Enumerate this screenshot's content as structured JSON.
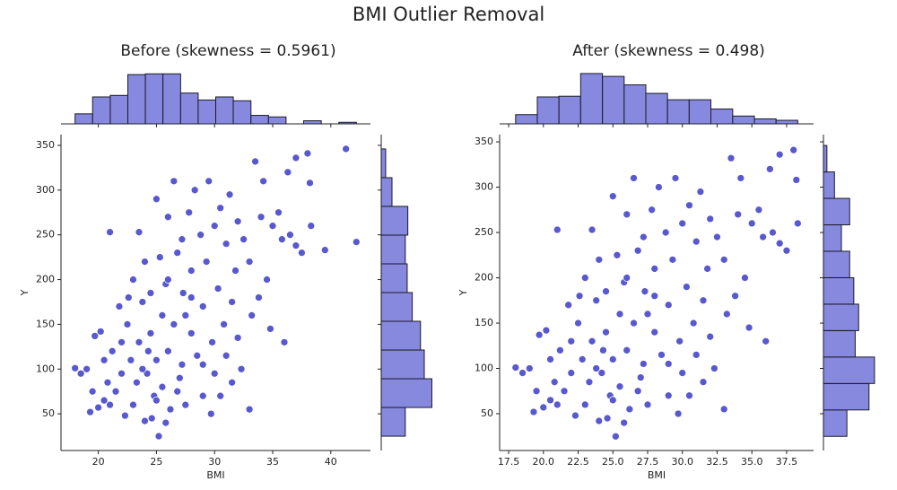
{
  "title": "BMI Outlier Removal",
  "chart_data": [
    {
      "type": "scatter",
      "title": "Before (skewness = 0.5961)",
      "x_label": "BMI",
      "y_label": "Y",
      "color": "#5858cf",
      "x": [
        18.0,
        18.5,
        19.0,
        19.3,
        19.7,
        20.0,
        20.2,
        20.5,
        20.8,
        21.0,
        21.2,
        21.5,
        21.8,
        22.0,
        22.3,
        22.5,
        22.8,
        23.0,
        23.0,
        23.3,
        23.5,
        23.5,
        23.8,
        24.0,
        24.2,
        24.5,
        24.5,
        24.8,
        25.0,
        25.0,
        25.2,
        25.3,
        25.5,
        25.5,
        25.8,
        26.0,
        26.0,
        26.2,
        26.5,
        26.5,
        26.8,
        27.0,
        27.2,
        27.3,
        27.5,
        27.8,
        28.0,
        28.0,
        28.3,
        28.5,
        28.8,
        29.0,
        29.0,
        29.3,
        29.5,
        29.8,
        30.0,
        30.0,
        30.3,
        30.5,
        30.8,
        31.0,
        31.0,
        31.3,
        31.5,
        31.8,
        32.0,
        32.0,
        32.3,
        32.5,
        33.0,
        33.0,
        33.2,
        33.5,
        33.8,
        34.0,
        34.2,
        34.5,
        34.8,
        35.0,
        35.5,
        35.8,
        36.0,
        36.3,
        36.5,
        37.0,
        37.0,
        37.5,
        38.0,
        38.2,
        38.3,
        39.5,
        41.3,
        42.2,
        21.0,
        22.0,
        23.8,
        24.3,
        25.0,
        26.8,
        27.5,
        29.0,
        30.5,
        31.5,
        20.5,
        22.6,
        24.0,
        26.0,
        28.0,
        19.5,
        24.6,
        25.8,
        27.2,
        29.7
      ],
      "y": [
        101,
        95,
        100,
        52,
        137,
        57,
        142,
        65,
        85,
        253,
        120,
        75,
        170,
        95,
        48,
        150,
        110,
        200,
        60,
        85,
        253,
        130,
        175,
        42,
        95,
        185,
        140,
        70,
        290,
        110,
        25,
        225,
        160,
        80,
        195,
        270,
        120,
        55,
        310,
        150,
        230,
        90,
        245,
        185,
        60,
        275,
        140,
        210,
        300,
        115,
        250,
        170,
        70,
        220,
        310,
        130,
        260,
        95,
        190,
        280,
        150,
        240,
        115,
        295,
        175,
        210,
        265,
        135,
        100,
        245,
        55,
        220,
        160,
        332,
        180,
        270,
        310,
        200,
        145,
        260,
        275,
        245,
        130,
        320,
        250,
        336,
        238,
        230,
        341,
        308,
        260,
        233,
        346,
        242,
        60,
        130,
        100,
        120,
        65,
        75,
        160,
        105,
        70,
        85,
        110,
        180,
        220,
        200,
        180,
        75,
        45,
        40,
        105,
        50
      ],
      "xlim": [
        16.79,
        43.41
      ],
      "ylim": [
        9,
        362
      ],
      "xticks": [
        20,
        25,
        30,
        35,
        40
      ],
      "yticks": [
        50,
        100,
        150,
        200,
        250,
        300,
        350
      ],
      "hist_color": "#8789de",
      "x_hist": {
        "bins": [
          18.0,
          19.51,
          21.03,
          22.54,
          24.05,
          25.56,
          27.08,
          28.59,
          30.1,
          31.61,
          33.13,
          34.64,
          36.15,
          37.66,
          39.18,
          40.69,
          42.2
        ],
        "counts": [
          13,
          35,
          37,
          64,
          65,
          65,
          40,
          31,
          35,
          30,
          11,
          9,
          0,
          4,
          0,
          2
        ],
        "ylim": [
          0,
          70
        ]
      },
      "y_hist": {
        "bins": [
          25,
          57.1,
          89.2,
          121.3,
          153.4,
          185.5,
          217.6,
          249.7,
          281.8,
          313.9,
          346
        ],
        "counts": [
          38,
          80,
          68,
          62,
          49,
          41,
          38,
          42,
          17,
          7
        ],
        "xlim": [
          0,
          85
        ]
      }
    },
    {
      "type": "scatter",
      "title": "After (skewness = 0.498)",
      "x_label": "BMI",
      "y_label": "Y",
      "color": "#5858cf",
      "x": [
        18.0,
        18.5,
        19.0,
        19.3,
        19.7,
        20.0,
        20.2,
        20.5,
        20.8,
        21.0,
        21.2,
        21.5,
        21.8,
        22.0,
        22.3,
        22.5,
        22.8,
        23.0,
        23.0,
        23.3,
        23.5,
        23.5,
        23.8,
        24.0,
        24.2,
        24.5,
        24.5,
        24.8,
        25.0,
        25.0,
        25.2,
        25.3,
        25.5,
        25.5,
        25.8,
        26.0,
        26.0,
        26.2,
        26.5,
        26.5,
        26.8,
        27.0,
        27.2,
        27.3,
        27.5,
        27.8,
        28.0,
        28.0,
        28.3,
        28.5,
        28.8,
        29.0,
        29.0,
        29.3,
        29.5,
        29.8,
        30.0,
        30.0,
        30.3,
        30.5,
        30.8,
        31.0,
        31.0,
        31.3,
        31.5,
        31.8,
        32.0,
        32.0,
        32.3,
        32.5,
        33.0,
        33.0,
        33.2,
        33.5,
        33.8,
        34.0,
        34.2,
        34.5,
        34.8,
        35.0,
        35.5,
        35.8,
        36.0,
        36.3,
        36.5,
        37.0,
        37.0,
        37.5,
        38.0,
        38.2,
        38.3,
        21.0,
        22.0,
        23.8,
        24.3,
        25.0,
        26.8,
        27.5,
        29.0,
        30.5,
        31.5,
        20.5,
        22.6,
        24.0,
        26.0,
        28.0,
        19.5,
        24.6,
        25.8,
        27.2,
        29.7
      ],
      "y": [
        101,
        95,
        100,
        52,
        137,
        57,
        142,
        65,
        85,
        253,
        120,
        75,
        170,
        95,
        48,
        150,
        110,
        200,
        60,
        85,
        253,
        130,
        175,
        42,
        95,
        185,
        140,
        70,
        290,
        110,
        25,
        225,
        160,
        80,
        195,
        270,
        120,
        55,
        310,
        150,
        230,
        90,
        245,
        185,
        60,
        275,
        140,
        210,
        300,
        115,
        250,
        170,
        70,
        220,
        310,
        130,
        260,
        95,
        190,
        280,
        150,
        240,
        115,
        295,
        175,
        210,
        265,
        135,
        100,
        245,
        55,
        220,
        160,
        332,
        180,
        270,
        310,
        200,
        145,
        260,
        275,
        245,
        130,
        320,
        250,
        336,
        238,
        230,
        341,
        308,
        260,
        60,
        130,
        100,
        120,
        65,
        75,
        160,
        105,
        70,
        85,
        110,
        180,
        220,
        200,
        180,
        75,
        45,
        40,
        105,
        50
      ],
      "xlim": [
        16.85,
        39.44
      ],
      "ylim": [
        9.4,
        358
      ],
      "xticks": [
        17.5,
        {
          "value": 20,
          "label": "20.0"
        },
        22.5,
        {
          "value": 25,
          "label": "25.0"
        },
        27.5,
        {
          "value": 30,
          "label": "30.0"
        },
        32.5,
        {
          "value": 35,
          "label": "35.0"
        },
        37.5
      ],
      "yticks": [
        50,
        100,
        150,
        200,
        250,
        300,
        350
      ],
      "hist_color": "#8789de",
      "x_hist": {
        "bins": [
          18.0,
          19.56,
          21.12,
          22.68,
          24.25,
          25.81,
          27.37,
          28.93,
          30.49,
          32.05,
          33.62,
          35.18,
          36.74,
          38.3
        ],
        "counts": [
          13,
          38,
          39,
          71,
          67,
          55,
          43,
          34,
          34,
          21,
          11,
          7,
          5
        ],
        "ylim": [
          0,
          76
        ]
      },
      "y_hist": {
        "bins": [
          25,
          54.18,
          83.36,
          112.55,
          141.73,
          170.91,
          200.09,
          229.27,
          258.45,
          287.64,
          316.82,
          346
        ],
        "counts": [
          34,
          66,
          74,
          46,
          51,
          44,
          38,
          26,
          38,
          16,
          5
        ],
        "xlim": [
          0,
          78
        ]
      }
    }
  ]
}
